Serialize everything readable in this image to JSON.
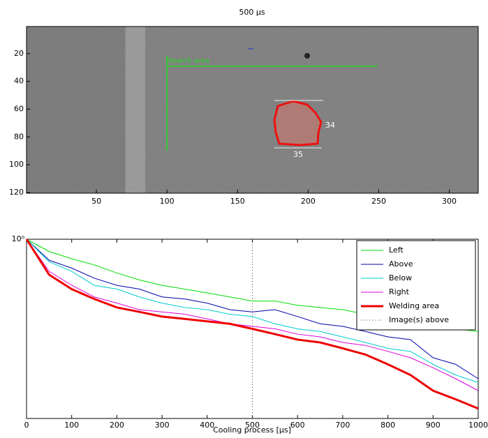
{
  "chart_data": [
    {
      "type": "image",
      "title": "500 µs",
      "xlim": [
        0.5,
        320.5
      ],
      "ylim": [
        0.5,
        120.5
      ],
      "y_reversed": true,
      "xticks": [
        50,
        100,
        150,
        200,
        250,
        300
      ],
      "yticks": [
        20,
        40,
        60,
        80,
        100,
        120
      ],
      "annotations": [
        "Search area",
        "34",
        "35"
      ]
    },
    {
      "type": "line",
      "xlabel": "Cooling process [µs]",
      "log_y": true,
      "legend": "upper right",
      "x": [
        0,
        50,
        100,
        150,
        200,
        250,
        300,
        350,
        400,
        450,
        500,
        550,
        600,
        650,
        700,
        750,
        800,
        850,
        900,
        950,
        1000
      ],
      "xlim": [
        0,
        1000
      ],
      "xticks": [
        0,
        100,
        200,
        300,
        400,
        500,
        600,
        700,
        800,
        900,
        1000
      ],
      "ylim": [
        0.25,
        1
      ],
      "yticks": [
        {
          "value": 1,
          "label": "10⁰"
        }
      ],
      "series": [
        {
          "name": "Left",
          "color": "#00dd00",
          "values": [
            1,
            0.91,
            0.86,
            0.82,
            0.77,
            0.73,
            0.7,
            0.68,
            0.66,
            0.64,
            0.62,
            0.62,
            0.6,
            0.59,
            0.58,
            0.56,
            0.55,
            0.53,
            0.52,
            0.5,
            0.49
          ]
        },
        {
          "name": "Above",
          "color": "#0000aa",
          "values": [
            1,
            0.85,
            0.8,
            0.74,
            0.7,
            0.68,
            0.64,
            0.63,
            0.61,
            0.58,
            0.57,
            0.58,
            0.55,
            0.52,
            0.51,
            0.49,
            0.47,
            0.46,
            0.4,
            0.38,
            0.34
          ]
        },
        {
          "name": "Below",
          "color": "#00cccc",
          "values": [
            1,
            0.84,
            0.78,
            0.7,
            0.68,
            0.64,
            0.61,
            0.59,
            0.58,
            0.56,
            0.55,
            0.52,
            0.5,
            0.49,
            0.47,
            0.45,
            0.43,
            0.42,
            0.38,
            0.35,
            0.33
          ]
        },
        {
          "name": "Right",
          "color": "#dd00dd",
          "values": [
            1,
            0.78,
            0.7,
            0.64,
            0.61,
            0.58,
            0.57,
            0.56,
            0.54,
            0.52,
            0.51,
            0.5,
            0.48,
            0.47,
            0.45,
            0.44,
            0.42,
            0.4,
            0.37,
            0.34,
            0.31
          ]
        },
        {
          "name": "Welding area",
          "color": "#ee0000",
          "linewidth": 3,
          "values": [
            1,
            0.76,
            0.68,
            0.63,
            0.59,
            0.57,
            0.55,
            0.54,
            0.53,
            0.52,
            0.5,
            0.48,
            0.46,
            0.45,
            0.43,
            0.41,
            0.38,
            0.35,
            0.31,
            0.29,
            0.27
          ]
        }
      ],
      "vline": {
        "name": "Image(s) above",
        "x": 500,
        "color": "#444444"
      }
    }
  ]
}
